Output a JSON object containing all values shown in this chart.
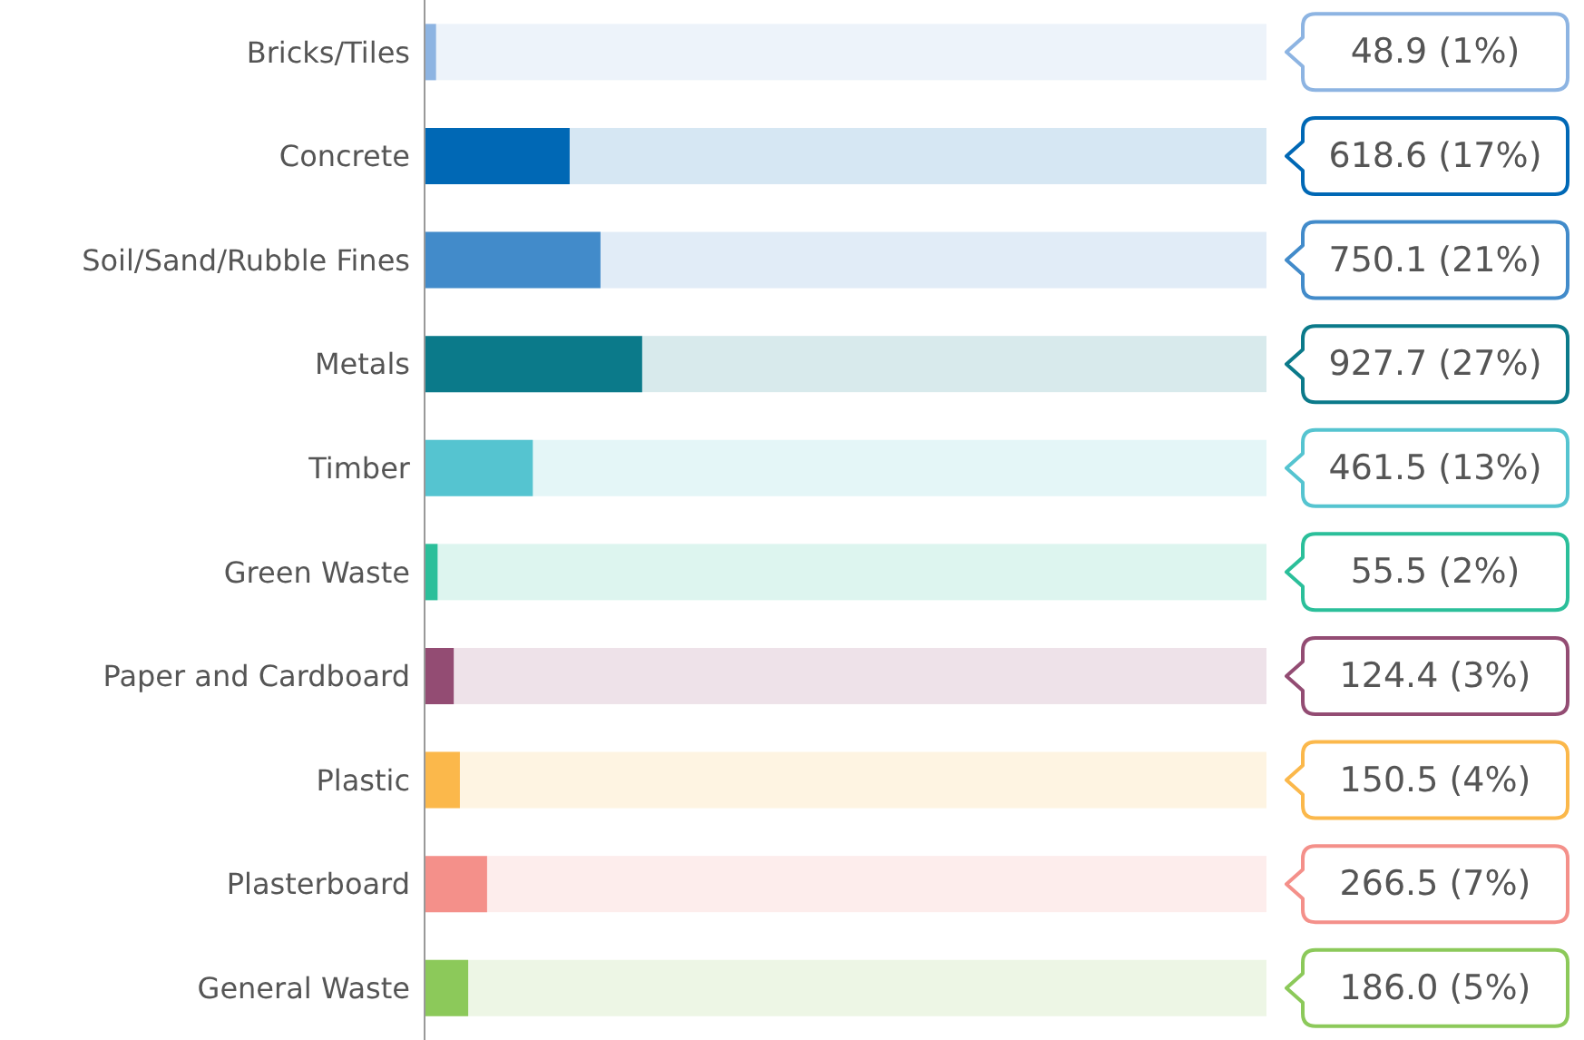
{
  "chart_data": {
    "type": "bar",
    "orientation": "horizontal",
    "categories": [
      "Bricks/Tiles",
      "Concrete",
      "Soil/Sand/Rubble Fines",
      "Metals",
      "Timber",
      "Green Waste",
      "Paper and Cardboard",
      "Plastic",
      "Plasterboard",
      "General Waste"
    ],
    "values": [
      48.9,
      618.6,
      750.1,
      927.7,
      461.5,
      55.5,
      124.4,
      150.5,
      266.5,
      186.0
    ],
    "value_labels": [
      "48.9 (1%)",
      "618.6 (17%)",
      "750.1 (21%)",
      "927.7 (27%)",
      "461.5 (13%)",
      "55.5 (2%)",
      "124.4 (3%)",
      "150.5 (4%)",
      "266.5 (7%)",
      "186.0 (5%)"
    ],
    "colors": [
      "#8db4e2",
      "#0068b5",
      "#428bca",
      "#0b7a8a",
      "#55c4d0",
      "#2bbf9a",
      "#934c73",
      "#fbb84b",
      "#f4908a",
      "#8cc95a"
    ]
  }
}
